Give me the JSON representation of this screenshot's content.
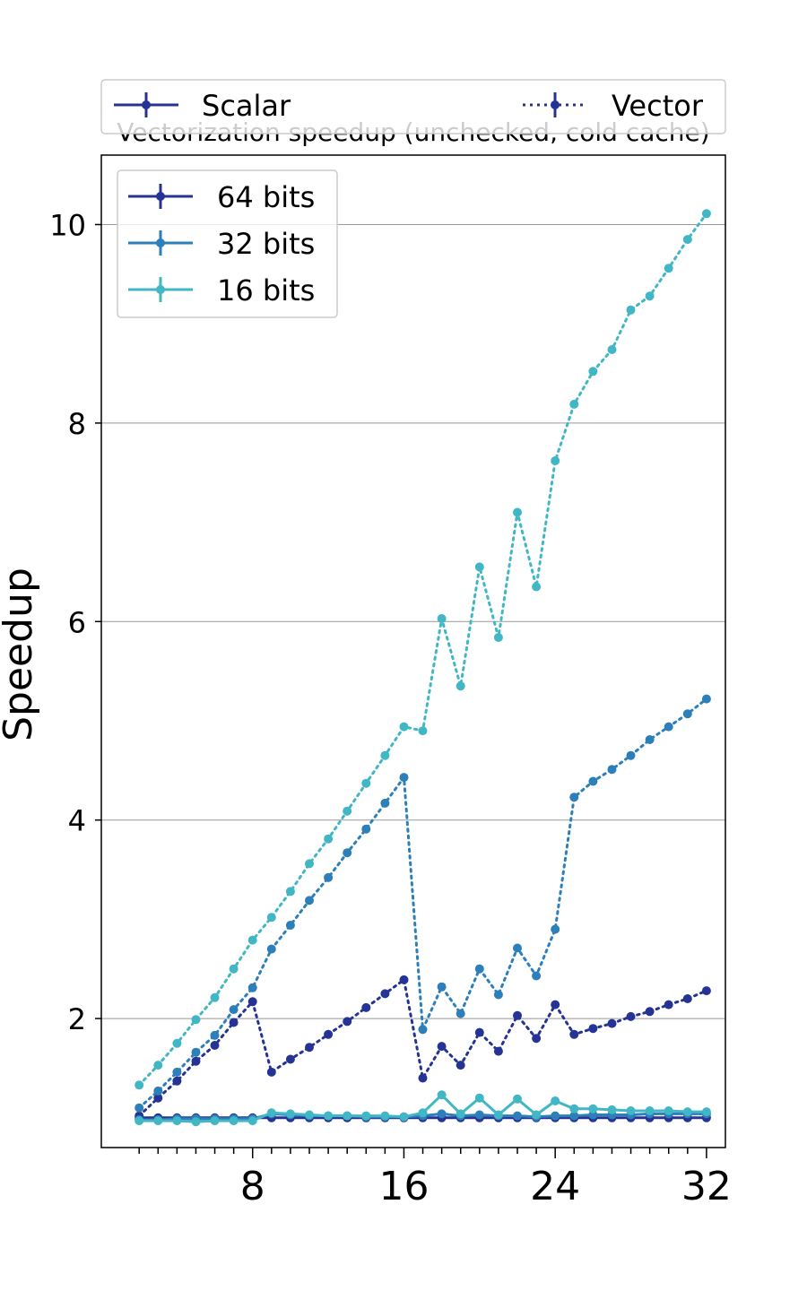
{
  "chart_data": {
    "type": "line",
    "title": "Vectorization speedup (unchecked, cold cache)",
    "xlabel": "",
    "ylabel": "Speedup",
    "xlim": [
      0,
      33
    ],
    "ylim": [
      0.7,
      10.7
    ],
    "x_ticks": [
      8,
      16,
      24,
      32
    ],
    "y_ticks": [
      2,
      4,
      6,
      8,
      10
    ],
    "grid": "horizontal",
    "style_legend": {
      "placement": "above-plot",
      "entries": [
        {
          "label": "Scalar",
          "linestyle": "solid"
        },
        {
          "label": "Vector",
          "linestyle": "dotted"
        }
      ]
    },
    "width_legend": {
      "placement": "top-left",
      "entries": [
        "64 bits",
        "32 bits",
        "16 bits"
      ]
    },
    "colors": {
      "64 bits": "#253494",
      "32 bits": "#2c7fb8",
      "16 bits": "#41b6c4"
    },
    "x": [
      2,
      3,
      4,
      5,
      6,
      7,
      8,
      9,
      10,
      11,
      12,
      13,
      14,
      15,
      16,
      17,
      18,
      19,
      20,
      21,
      22,
      23,
      24,
      25,
      26,
      27,
      28,
      29,
      30,
      31,
      32
    ],
    "series": [
      {
        "name": "64 bits",
        "mode": "Vector",
        "color": "#253494",
        "values": [
          1.02,
          1.2,
          1.37,
          1.57,
          1.73,
          1.96,
          2.17,
          1.46,
          1.59,
          1.71,
          1.84,
          1.97,
          2.11,
          2.25,
          2.39,
          1.4,
          1.72,
          1.53,
          1.86,
          1.67,
          2.03,
          1.8,
          2.14,
          1.84,
          1.9,
          1.95,
          2.02,
          2.07,
          2.14,
          2.2,
          2.28
        ]
      },
      {
        "name": "32 bits",
        "mode": "Vector",
        "color": "#2c7fb8",
        "values": [
          1.1,
          1.27,
          1.46,
          1.66,
          1.83,
          2.09,
          2.31,
          2.7,
          2.94,
          3.19,
          3.42,
          3.67,
          3.91,
          4.17,
          4.43,
          1.89,
          2.32,
          2.05,
          2.5,
          2.24,
          2.71,
          2.43,
          2.9,
          4.23,
          4.39,
          4.51,
          4.65,
          4.81,
          4.94,
          5.07,
          5.22
        ]
      },
      {
        "name": "16 bits",
        "mode": "Vector",
        "color": "#41b6c4",
        "values": [
          1.33,
          1.53,
          1.75,
          1.99,
          2.21,
          2.5,
          2.79,
          3.02,
          3.28,
          3.56,
          3.81,
          4.09,
          4.37,
          4.65,
          4.94,
          4.9,
          6.03,
          5.35,
          6.55,
          5.84,
          7.1,
          6.35,
          7.62,
          8.19,
          8.52,
          8.74,
          9.14,
          9.28,
          9.56,
          9.85,
          10.11
        ]
      },
      {
        "name": "64 bits",
        "mode": "Scalar",
        "color": "#253494",
        "values": [
          1.0,
          1.0,
          1.0,
          1.0,
          1.0,
          1.0,
          1.0,
          1.0,
          1.0,
          1.0,
          1.0,
          1.0,
          1.0,
          1.0,
          1.0,
          1.0,
          1.0,
          1.0,
          1.0,
          1.0,
          1.0,
          1.0,
          1.0,
          1.0,
          1.0,
          1.0,
          1.0,
          1.0,
          1.0,
          1.0,
          1.0
        ]
      },
      {
        "name": "32 bits",
        "mode": "Scalar",
        "color": "#2c7fb8",
        "values": [
          0.98,
          0.98,
          0.99,
          0.99,
          0.99,
          0.99,
          0.99,
          1.04,
          1.03,
          1.02,
          1.02,
          1.02,
          1.01,
          1.01,
          1.01,
          1.02,
          1.04,
          1.02,
          1.03,
          1.02,
          1.02,
          1.01,
          1.02,
          1.02,
          1.03,
          1.03,
          1.03,
          1.04,
          1.04,
          1.04,
          1.04
        ]
      },
      {
        "name": "16 bits",
        "mode": "Scalar",
        "color": "#41b6c4",
        "values": [
          0.97,
          0.97,
          0.97,
          0.96,
          0.97,
          0.97,
          0.97,
          1.05,
          1.04,
          1.03,
          1.02,
          1.02,
          1.02,
          1.02,
          1.01,
          1.05,
          1.23,
          1.04,
          1.2,
          1.03,
          1.19,
          1.03,
          1.17,
          1.09,
          1.09,
          1.08,
          1.07,
          1.07,
          1.07,
          1.06,
          1.06
        ]
      }
    ]
  }
}
